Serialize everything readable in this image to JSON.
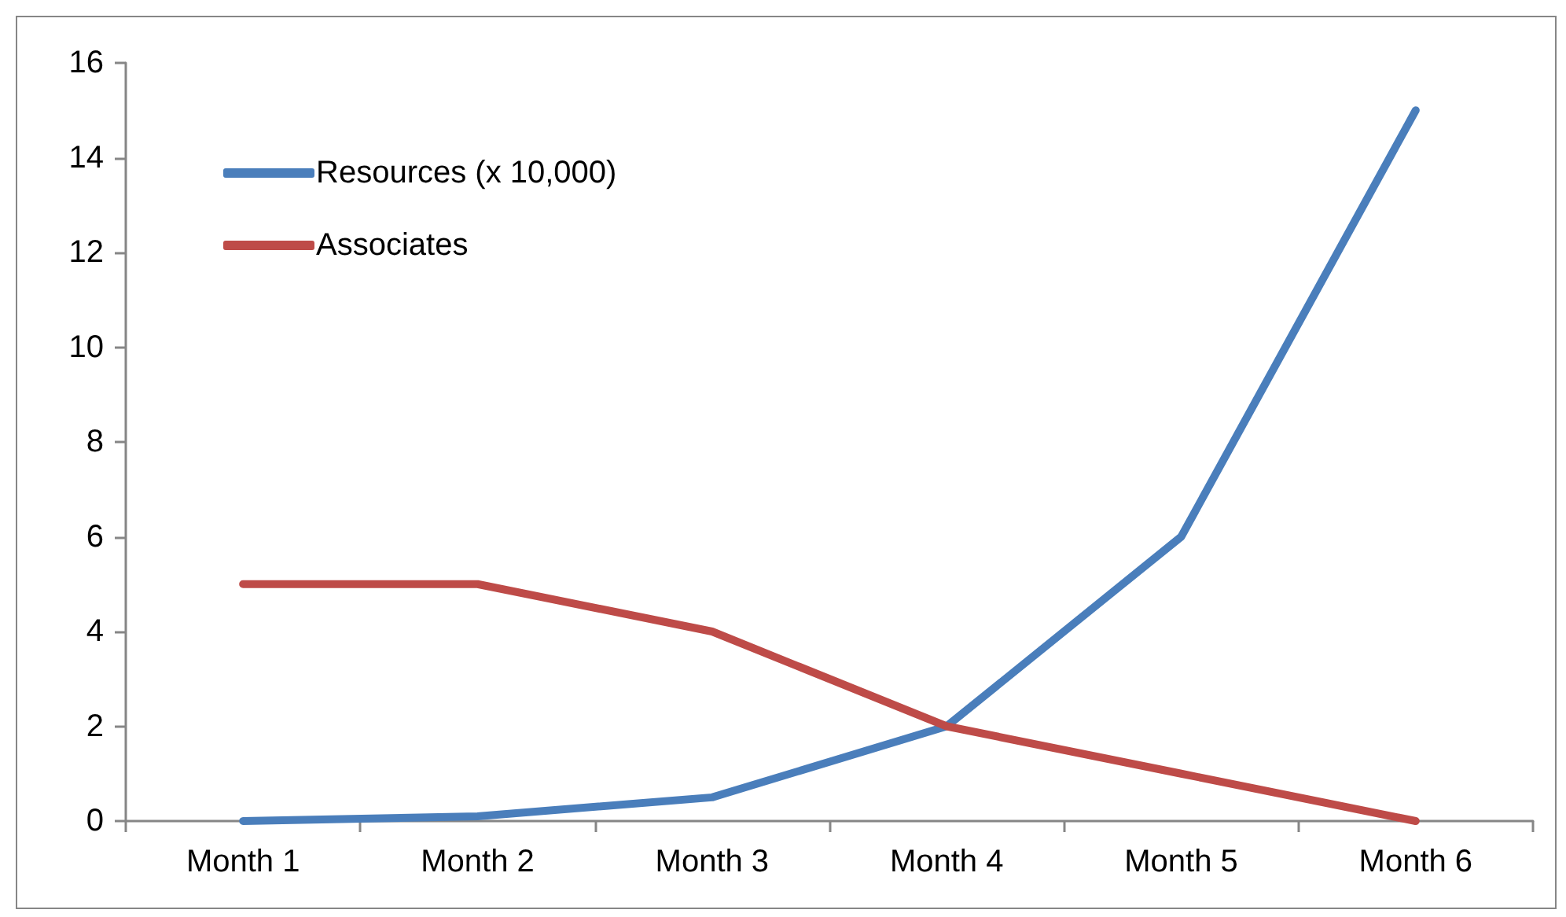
{
  "chart_data": {
    "type": "line",
    "categories": [
      "Month 1",
      "Month 2",
      "Month 3",
      "Month 4",
      "Month 5",
      "Month 6"
    ],
    "series": [
      {
        "name": "Resources (x 10,000)",
        "color": "#4a7ebb",
        "values": [
          0,
          0.1,
          0.5,
          2,
          6,
          15
        ]
      },
      {
        "name": "Associates",
        "color": "#be4b48",
        "values": [
          5,
          5,
          4,
          2,
          1,
          0
        ]
      }
    ],
    "ylim": [
      0,
      16
    ],
    "yticks": [
      0,
      2,
      4,
      6,
      8,
      10,
      12,
      14,
      16
    ],
    "legend": "top left",
    "marker": "none",
    "line_style": "solid"
  }
}
